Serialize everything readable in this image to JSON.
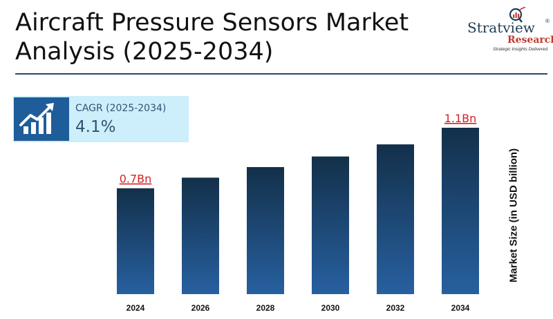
{
  "header": {
    "title_line1": "Aircraft Pressure Sensors Market",
    "title_line2": "Analysis (2025-2034)"
  },
  "logo": {
    "brand": "Stratview",
    "registered": "®",
    "research": "Research",
    "tagline": "Strategic Insights Delivered",
    "icon": "magnifier-chart-icon"
  },
  "cagr": {
    "label": "CAGR (2025-2034)",
    "value": "4.1%",
    "icon": "growth-bars-arrow-icon"
  },
  "colors": {
    "bar_top": "#13304a",
    "bar_bottom": "#2760a0",
    "annotation": "#d42020",
    "rule": "#2b4a5e",
    "cagr_bg": "#cdeefb",
    "cagr_icon_bg": "#1f5c9a"
  },
  "chart_data": {
    "type": "bar",
    "categories": [
      "2024",
      "2026",
      "2028",
      "2030",
      "2032",
      "2034"
    ],
    "values": [
      0.7,
      0.77,
      0.84,
      0.91,
      0.99,
      1.1
    ],
    "data_labels": [
      "0.7Bn",
      "",
      "",
      "",
      "",
      "1.1Bn"
    ],
    "ylabel": "Market Size (in USD billion)",
    "xlabel": "",
    "ylim": [
      0,
      1.1
    ],
    "grid": false,
    "legend": "none"
  }
}
